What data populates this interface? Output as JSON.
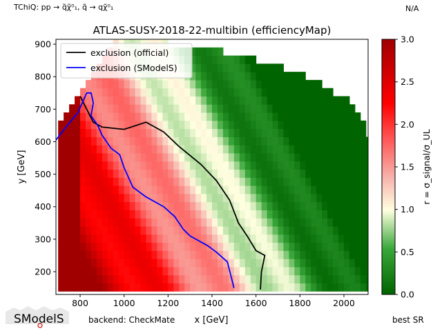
{
  "header": {
    "left": "TChiQ: pp → q̃χ̃⁰₁, q̃ → qχ̃⁰₁",
    "right": "N/A"
  },
  "footer": {
    "logo": "SModelS",
    "backend": "backend: CheckMate",
    "best_sr": "best SR"
  },
  "colors": {
    "official": "#000000",
    "smodels": "#0000ff",
    "cmap_low": "#006400",
    "cmap_mid": "#ffffe0",
    "cmap_high": "#b00000"
  },
  "chart_data": {
    "type": "heatmap",
    "title": "ATLAS-SUSY-2018-22-multibin (efficiencyMap)",
    "xlabel": "x [GeV]",
    "ylabel": "y [GeV]",
    "xlim": [
      690,
      2110
    ],
    "ylim": [
      130,
      915
    ],
    "x_ticks": [
      800,
      1000,
      1200,
      1400,
      1600,
      1800,
      2000
    ],
    "y_ticks": [
      200,
      300,
      400,
      500,
      600,
      700,
      800,
      900
    ],
    "colorbar": {
      "label": "r = σ_signal/σ_UL",
      "range": [
        0,
        3
      ],
      "ticks": [
        "0.0",
        "0.5",
        "1.0",
        "1.5",
        "2.0",
        "2.5",
        "3.0"
      ]
    },
    "legend": {
      "position": "top-left",
      "entries": [
        "exclusion (official)",
        "exclusion (SModelS)"
      ]
    },
    "series": [
      {
        "name": "exclusion (official)",
        "points": [
          [
            800,
            740
          ],
          [
            860,
            660
          ],
          [
            900,
            645
          ],
          [
            1000,
            638
          ],
          [
            1100,
            660
          ],
          [
            1180,
            630
          ],
          [
            1250,
            585
          ],
          [
            1350,
            530
          ],
          [
            1420,
            480
          ],
          [
            1480,
            420
          ],
          [
            1520,
            350
          ],
          [
            1560,
            310
          ],
          [
            1600,
            265
          ],
          [
            1640,
            250
          ],
          [
            1625,
            200
          ],
          [
            1620,
            145
          ]
        ]
      },
      {
        "name": "exclusion (SModelS)",
        "points": [
          [
            690,
            605
          ],
          [
            730,
            640
          ],
          [
            790,
            690
          ],
          [
            830,
            750
          ],
          [
            850,
            750
          ],
          [
            860,
            720
          ],
          [
            850,
            680
          ],
          [
            880,
            650
          ],
          [
            900,
            620
          ],
          [
            940,
            580
          ],
          [
            980,
            560
          ],
          [
            1000,
            520
          ],
          [
            1040,
            460
          ],
          [
            1100,
            430
          ],
          [
            1180,
            400
          ],
          [
            1230,
            370
          ],
          [
            1270,
            330
          ],
          [
            1300,
            310
          ],
          [
            1340,
            295
          ],
          [
            1380,
            280
          ],
          [
            1420,
            260
          ],
          [
            1470,
            230
          ],
          [
            1500,
            150
          ]
        ]
      }
    ],
    "cells_note_hidden": ""
  }
}
